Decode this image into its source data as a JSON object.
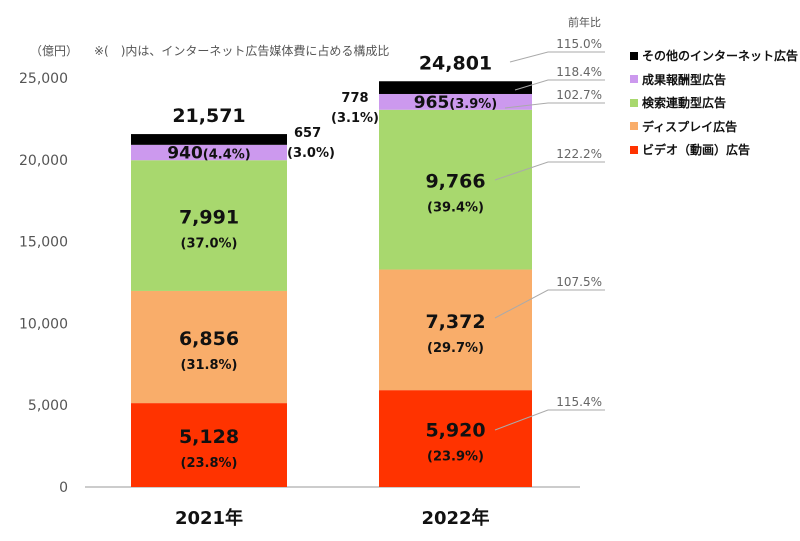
{
  "chart_data": {
    "type": "bar",
    "stacked": true,
    "unit_label": "（億円）",
    "note": "※(　)内は、インターネット広告媒体費に占める構成比",
    "yoy_header": "前年比",
    "categories": [
      "2021年",
      "2022年"
    ],
    "ylim": [
      0,
      25000
    ],
    "yticks": [
      "0",
      "5,000",
      "10,000",
      "15,000",
      "20,000",
      "25,000"
    ],
    "totals": [
      "21,571",
      "24,801"
    ],
    "grid": false,
    "legend_position": "right",
    "series": [
      {
        "name": "ビデオ（動画）広告",
        "color": "#ff3300",
        "values": [
          5128,
          5920
        ],
        "labels": [
          "5,128",
          "5,920"
        ],
        "shares": [
          "(23.8%)",
          "(23.9%)"
        ],
        "yoy": "115.4%"
      },
      {
        "name": "ディスプレイ広告",
        "color": "#f9ad6a",
        "values": [
          6856,
          7372
        ],
        "labels": [
          "6,856",
          "7,372"
        ],
        "shares": [
          "(31.8%)",
          "(29.7%)"
        ],
        "yoy": "107.5%"
      },
      {
        "name": "検索連動型広告",
        "color": "#a8d86e",
        "values": [
          7991,
          9766
        ],
        "labels": [
          "7,991",
          "9,766"
        ],
        "shares": [
          "(37.0%)",
          "(39.4%)"
        ],
        "yoy": "122.2%"
      },
      {
        "name": "成果報酬型広告",
        "color": "#cc99ee",
        "values": [
          940,
          965
        ],
        "labels": [
          "940",
          "965"
        ],
        "shares": [
          "(4.4%)",
          "(3.9%)"
        ],
        "yoy": "102.7%"
      },
      {
        "name": "その他のインターネット広告",
        "color": "#000000",
        "values": [
          657,
          778
        ],
        "labels": [
          "657",
          "778"
        ],
        "shares": [
          "(3.0%)",
          "(3.1%)"
        ],
        "yoy": "118.4%"
      }
    ],
    "total_yoy": "115.0%"
  }
}
